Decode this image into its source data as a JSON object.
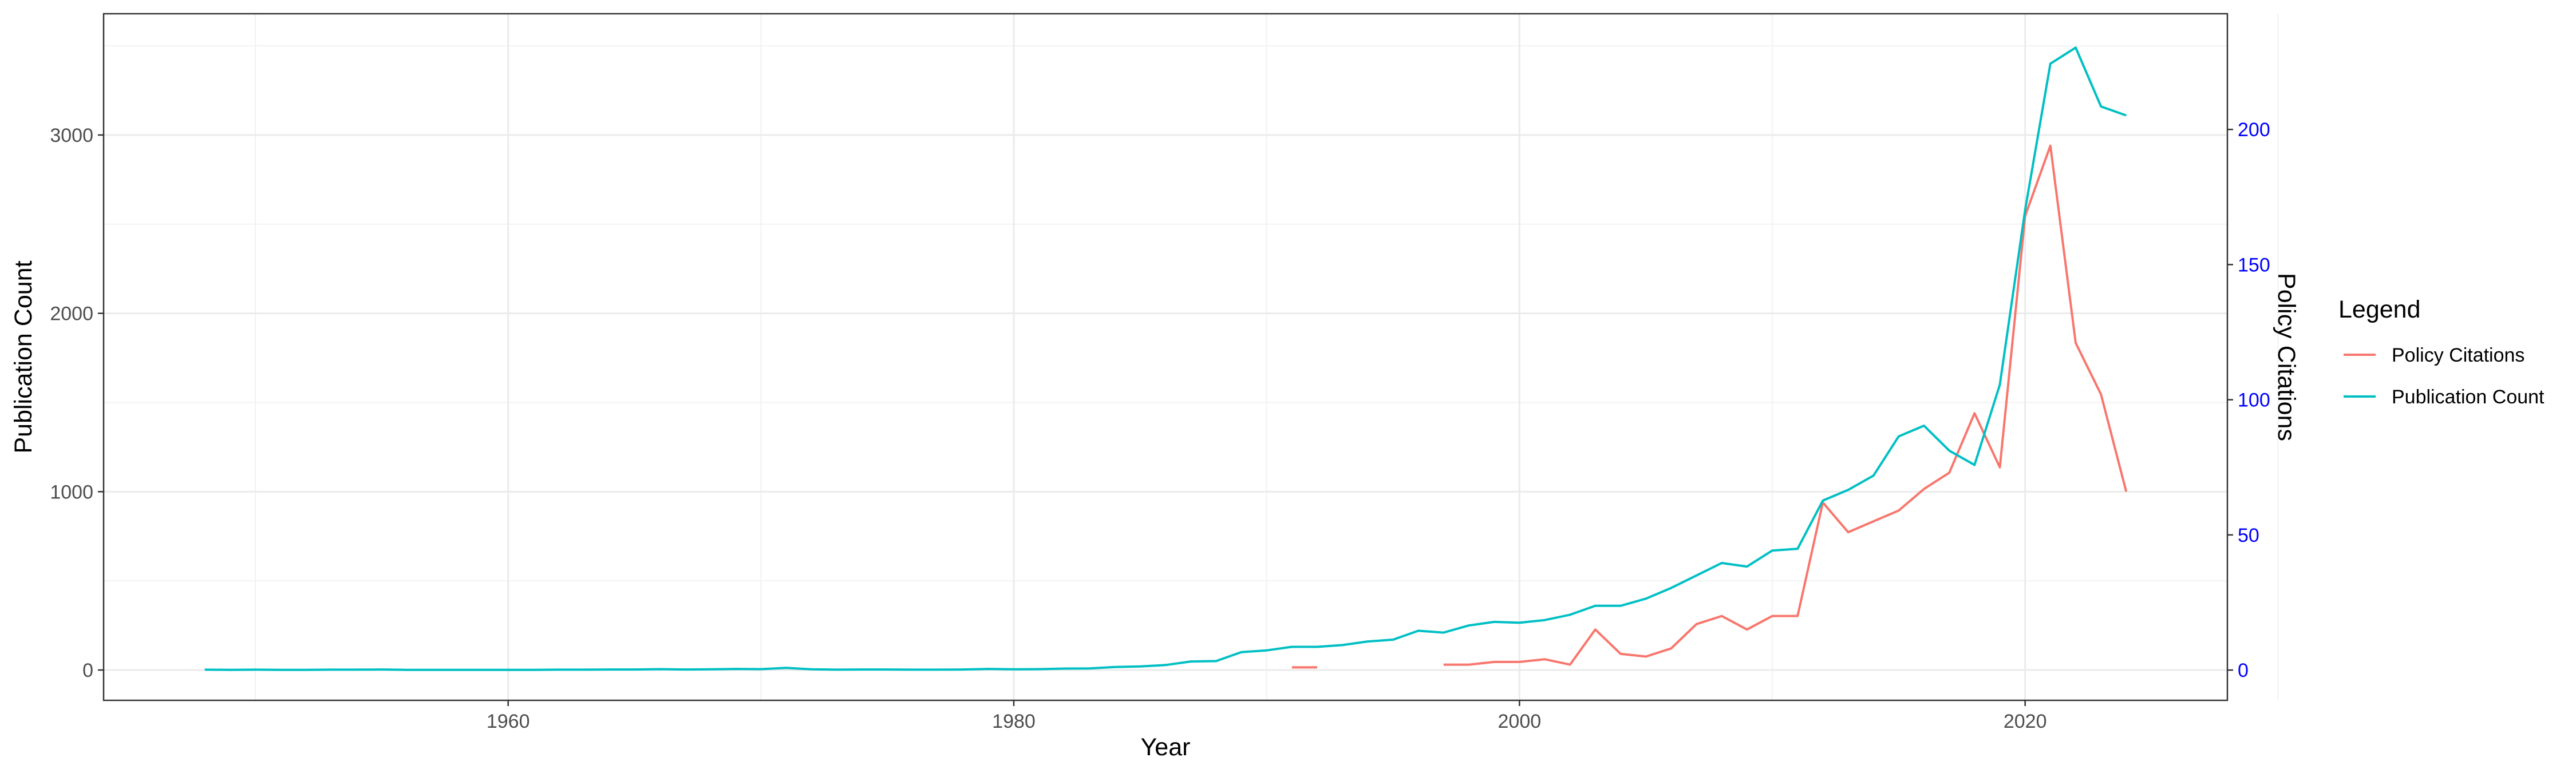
{
  "chart_data": {
    "type": "line",
    "title": "",
    "xlabel": "Year",
    "ylabel": "Publication Count",
    "ylabel_right": "Policy Citations",
    "xlim": [
      1944,
      2028
    ],
    "ylim": [
      -170,
      3680
    ],
    "ylim_right": [
      -11.2,
      242.8
    ],
    "x_ticks": [
      "1960",
      "1980",
      "2000",
      "2020"
    ],
    "y_ticks": [
      "0",
      "1000",
      "2000",
      "3000"
    ],
    "y_ticks_right": [
      "0",
      "50",
      "100",
      "150",
      "200"
    ],
    "grid": true,
    "legend_title": "Legend",
    "legend_position": "right",
    "colors": {
      "publication": "#00BFC4",
      "policy": "#F8766D",
      "right_axis": "#0000FF"
    },
    "series": [
      {
        "name": "Publication Count",
        "axis": "left",
        "x": [
          1948,
          1949,
          1950,
          1951,
          1952,
          1953,
          1954,
          1955,
          1956,
          1957,
          1958,
          1959,
          1960,
          1961,
          1962,
          1963,
          1964,
          1965,
          1966,
          1967,
          1968,
          1969,
          1970,
          1971,
          1972,
          1973,
          1974,
          1975,
          1976,
          1977,
          1978,
          1979,
          1980,
          1981,
          1982,
          1983,
          1984,
          1985,
          1986,
          1987,
          1988,
          1989,
          1990,
          1991,
          1992,
          1993,
          1994,
          1995,
          1996,
          1997,
          1998,
          1999,
          2000,
          2001,
          2002,
          2003,
          2004,
          2005,
          2006,
          2007,
          2008,
          2009,
          2010,
          2011,
          2012,
          2013,
          2014,
          2015,
          2016,
          2017,
          2018,
          2019,
          2020,
          2021,
          2022,
          2023,
          2024
        ],
        "values": [
          2,
          1,
          2,
          1,
          1,
          2,
          2,
          3,
          1,
          1,
          1,
          1,
          1,
          1,
          2,
          2,
          3,
          3,
          5,
          3,
          4,
          6,
          5,
          12,
          4,
          2,
          3,
          3,
          2,
          2,
          3,
          6,
          4,
          5,
          8,
          9,
          17,
          20,
          28,
          48,
          50,
          100,
          110,
          130,
          130,
          140,
          160,
          170,
          220,
          210,
          250,
          270,
          265,
          280,
          310,
          360,
          360,
          400,
          460,
          530,
          600,
          580,
          670,
          680,
          950,
          1010,
          1090,
          1310,
          1370,
          1230,
          1150,
          1600,
          2580,
          3400,
          3490,
          3160,
          3110
        ]
      },
      {
        "name": "Policy Citations",
        "axis": "right",
        "x": [
          1991,
          1992,
          null,
          1997,
          1998,
          1999,
          2000,
          2001,
          2002,
          2003,
          2004,
          2005,
          2006,
          2007,
          2008,
          2009,
          2010,
          2011,
          2012,
          2013,
          2014,
          2015,
          2016,
          2017,
          2018,
          2019,
          2020,
          2021,
          2022,
          2023,
          2024
        ],
        "values": [
          1,
          1,
          null,
          2,
          2,
          3,
          3,
          4,
          2,
          15,
          6,
          5,
          8,
          17,
          20,
          15,
          20,
          20,
          62,
          51,
          55,
          59,
          67,
          73,
          95,
          75,
          168,
          194,
          121,
          102,
          66
        ]
      }
    ]
  }
}
